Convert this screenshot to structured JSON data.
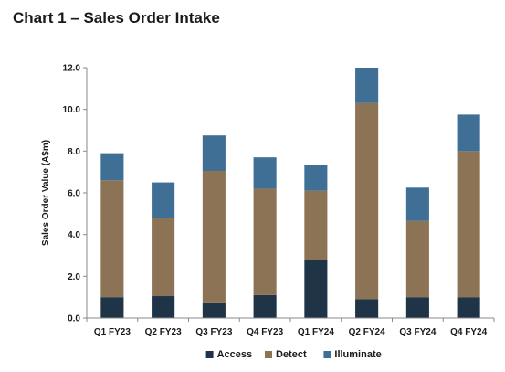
{
  "chart_data": {
    "type": "bar",
    "stacked": true,
    "title": "Chart 1 – Sales Order Intake",
    "xlabel": "",
    "ylabel": "Sales Order Value (A$m)",
    "ylim": [
      0,
      12
    ],
    "y_ticks": [
      "0.0",
      "2.0",
      "4.0",
      "6.0",
      "8.0",
      "10.0",
      "12.0"
    ],
    "grid": false,
    "legend_position": "bottom",
    "categories": [
      "Q1 FY23",
      "Q2 FY23",
      "Q3 FY23",
      "Q4 FY23",
      "Q1 FY24",
      "Q2 FY24",
      "Q3 FY24",
      "Q4 FY24"
    ],
    "series": [
      {
        "name": "Access",
        "color": "#1f3447",
        "values": [
          1.0,
          1.05,
          0.75,
          1.1,
          2.8,
          0.9,
          1.0,
          1.0
        ]
      },
      {
        "name": "Detect",
        "color": "#8c7355",
        "values": [
          5.6,
          3.75,
          6.3,
          5.1,
          3.3,
          9.4,
          3.65,
          7.0
        ]
      },
      {
        "name": "Illuminate",
        "color": "#3f6f95",
        "values": [
          1.3,
          1.7,
          1.7,
          1.5,
          1.25,
          1.7,
          1.6,
          1.75
        ]
      }
    ]
  }
}
